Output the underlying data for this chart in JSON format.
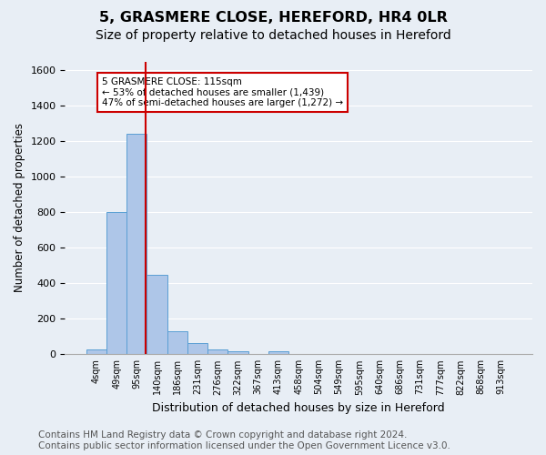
{
  "title1": "5, GRASMERE CLOSE, HEREFORD, HR4 0LR",
  "title2": "Size of property relative to detached houses in Hereford",
  "xlabel": "Distribution of detached houses by size in Hereford",
  "ylabel": "Number of detached properties",
  "footnote": "Contains HM Land Registry data © Crown copyright and database right 2024.\nContains public sector information licensed under the Open Government Licence v3.0.",
  "bin_labels": [
    "4sqm",
    "49sqm",
    "95sqm",
    "140sqm",
    "186sqm",
    "231sqm",
    "276sqm",
    "322sqm",
    "367sqm",
    "413sqm",
    "458sqm",
    "504sqm",
    "549sqm",
    "595sqm",
    "640sqm",
    "686sqm",
    "731sqm",
    "777sqm",
    "822sqm",
    "868sqm",
    "913sqm"
  ],
  "bar_heights": [
    25,
    800,
    1240,
    450,
    130,
    65,
    28,
    18,
    0,
    18,
    0,
    0,
    0,
    0,
    0,
    0,
    0,
    0,
    0,
    0,
    0
  ],
  "bar_color": "#aec6e8",
  "bar_edge_color": "#5a9fd4",
  "vline_x": 2.45,
  "vline_color": "#cc0000",
  "annotation_text": "5 GRASMERE CLOSE: 115sqm\n← 53% of detached houses are smaller (1,439)\n47% of semi-detached houses are larger (1,272) →",
  "annotation_box_color": "#ffffff",
  "annotation_border_color": "#cc0000",
  "ylim": [
    0,
    1650
  ],
  "yticks": [
    0,
    200,
    400,
    600,
    800,
    1000,
    1200,
    1400,
    1600
  ],
  "grid_color": "#ffffff",
  "bg_color": "#e8eef5",
  "title1_fontsize": 11.5,
  "title2_fontsize": 10,
  "footnote_fontsize": 7.5
}
